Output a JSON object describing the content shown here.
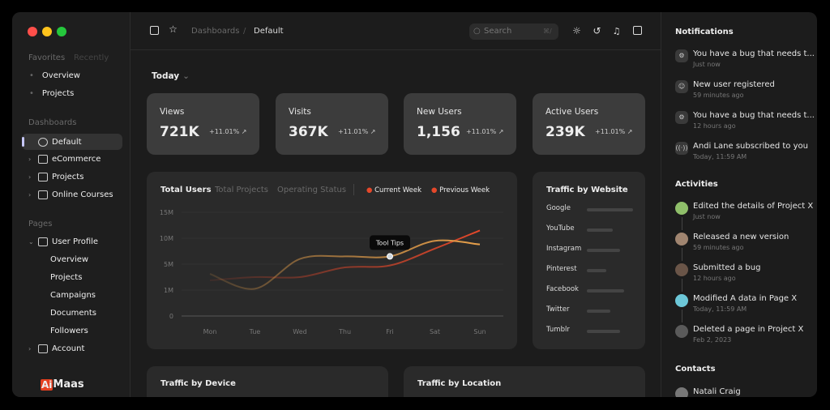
{
  "sidebar": {
    "tabs": [
      "Favorites",
      "Recently"
    ],
    "favorites": [
      "Overview",
      "Projects"
    ],
    "dashboards_heading": "Dashboards",
    "dashboards": [
      {
        "label": "Default",
        "icon": "pie-chart-icon"
      },
      {
        "label": "eCommerce",
        "icon": "shopping-bag-icon"
      },
      {
        "label": "Projects",
        "icon": "folder-icon"
      },
      {
        "label": "Online Courses",
        "icon": "book-icon"
      }
    ],
    "pages_heading": "Pages",
    "user_profile": "User Profile",
    "user_profile_children": [
      "Overview",
      "Projects",
      "Campaigns",
      "Documents",
      "Followers"
    ],
    "account": "Account",
    "logo": "AiMaas"
  },
  "header": {
    "breadcrumb": [
      "Dashboards",
      "Default"
    ],
    "search_placeholder": "Search",
    "search_shortcut": "⌘/"
  },
  "filter": "Today",
  "stats": [
    {
      "label": "Views",
      "value": "721K",
      "change": "+11.01%"
    },
    {
      "label": "Visits",
      "value": "367K",
      "change": "+11.01%"
    },
    {
      "label": "New Users",
      "value": "1,156",
      "change": "+11.01%"
    },
    {
      "label": "Active Users",
      "value": "239K",
      "change": "+11.01%"
    }
  ],
  "chart_tabs": [
    "Total Users",
    "Total Projects",
    "Operating Status"
  ],
  "chart_data": {
    "type": "line",
    "categories": [
      "Mon",
      "Tue",
      "Wed",
      "Thu",
      "Fri",
      "Sat",
      "Sun"
    ],
    "y_ticks": [
      "15M",
      "10M",
      "5M",
      "1M",
      "0"
    ],
    "y_tick_values": [
      15,
      10,
      5,
      1,
      0
    ],
    "series": [
      {
        "name": "Current Week",
        "color": "#e8a04a",
        "values": [
          3.5,
          1.2,
          6,
          6.5,
          6.5,
          9.5,
          8.8
        ]
      },
      {
        "name": "Previous Week",
        "color": "#e5482a",
        "values": [
          2.5,
          3,
          3,
          4.5,
          4.8,
          8,
          11.5
        ]
      }
    ],
    "tooltip": "Tool Tips",
    "grid": true,
    "legend": "top"
  },
  "traffic_website": {
    "title": "Traffic by Website",
    "items": [
      {
        "name": "Google",
        "share": 1.0
      },
      {
        "name": "YouTube",
        "share": 0.56
      },
      {
        "name": "Instagram",
        "share": 0.72
      },
      {
        "name": "Pinterest",
        "share": 0.42
      },
      {
        "name": "Facebook",
        "share": 0.8
      },
      {
        "name": "Twitter",
        "share": 0.5
      },
      {
        "name": "Tumblr",
        "share": 0.72
      }
    ]
  },
  "bottom": [
    "Traffic by Device",
    "Traffic by Location"
  ],
  "notifications": {
    "title": "Notifications",
    "items": [
      {
        "text": "You have a bug that needs t...",
        "time": "Just now",
        "icon": "bug-icon"
      },
      {
        "text": "New user registered",
        "time": "59 minutes ago",
        "icon": "user-icon"
      },
      {
        "text": "You have a bug that needs t...",
        "time": "12 hours ago",
        "icon": "bug-icon"
      },
      {
        "text": "Andi Lane subscribed to you",
        "time": "Today, 11:59 AM",
        "icon": "broadcast-icon"
      }
    ]
  },
  "activities": {
    "title": "Activities",
    "items": [
      {
        "text": "Edited the details of Project X",
        "time": "Just now",
        "color": "#8fbf6a"
      },
      {
        "text": "Released a new version",
        "time": "59 minutes ago",
        "color": "#a08570"
      },
      {
        "text": "Submitted a bug",
        "time": "12 hours ago",
        "color": "#6a5548"
      },
      {
        "text": "Modified A data in Page X",
        "time": "Today, 11:59 AM",
        "color": "#6cc7d8"
      },
      {
        "text": "Deleted a page in Project X",
        "time": "Feb 2, 2023",
        "color": "#5a5a5a"
      }
    ]
  },
  "contacts": {
    "title": "Contacts",
    "items": [
      "Natali Craig"
    ]
  }
}
